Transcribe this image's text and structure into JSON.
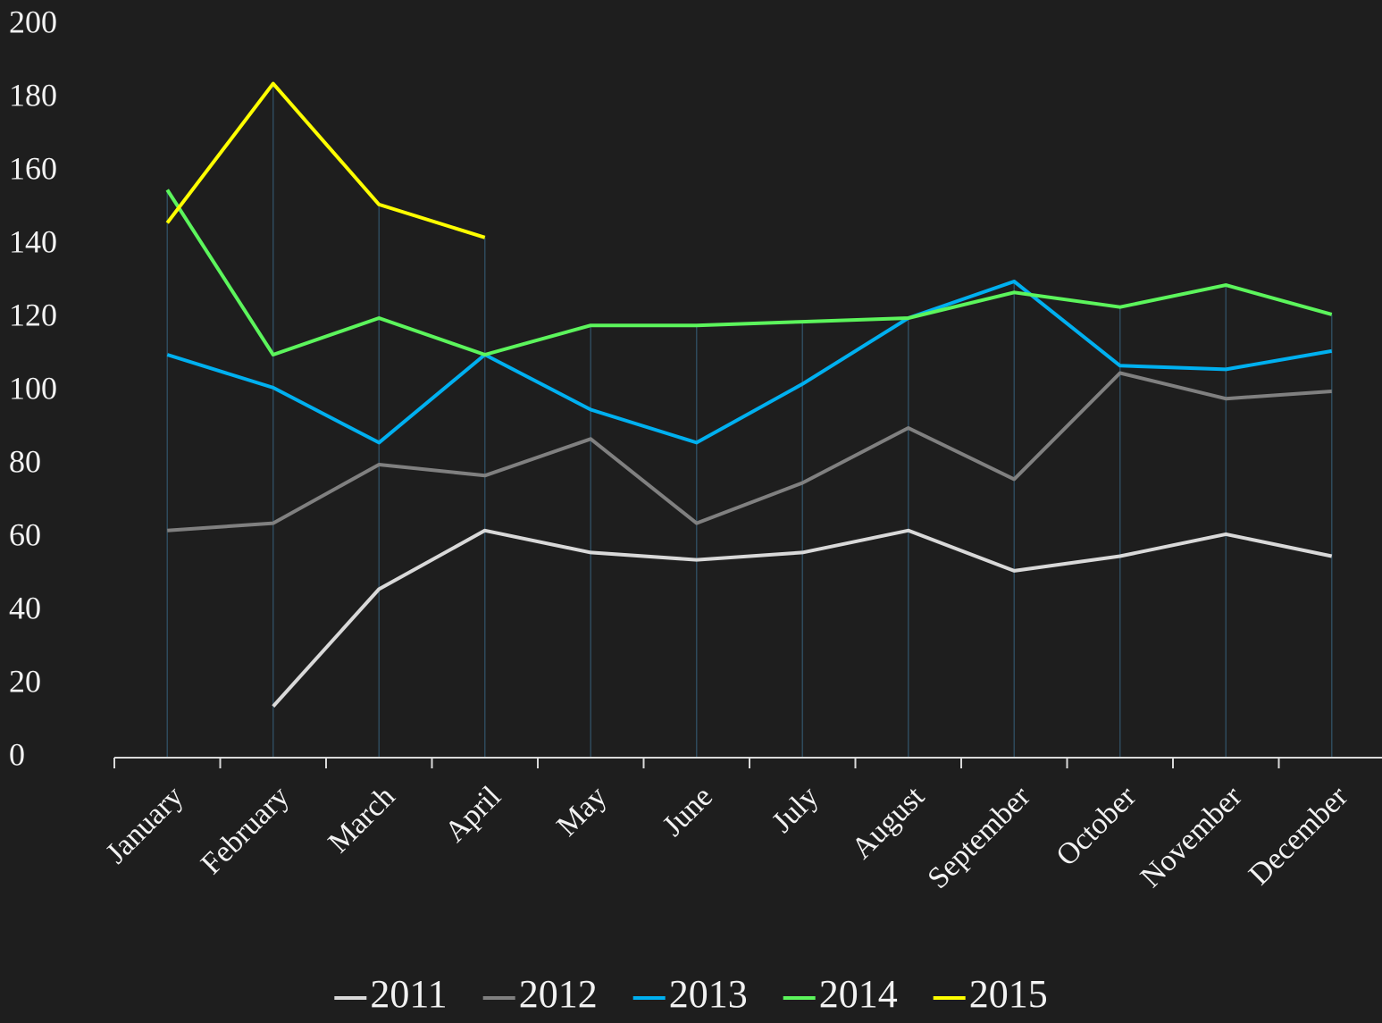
{
  "chart_data": {
    "type": "line",
    "categories": [
      "January",
      "February",
      "March",
      "April",
      "May",
      "June",
      "July",
      "August",
      "September",
      "October",
      "November",
      "December"
    ],
    "series": [
      {
        "name": "2011",
        "color": "#d9d9d9",
        "values": [
          null,
          14,
          46,
          62,
          56,
          54,
          56,
          62,
          51,
          55,
          61,
          55
        ]
      },
      {
        "name": "2012",
        "color": "#808080",
        "values": [
          62,
          64,
          80,
          77,
          87,
          64,
          75,
          90,
          76,
          105,
          98,
          100
        ]
      },
      {
        "name": "2013",
        "color": "#00b0f0",
        "values": [
          110,
          101,
          86,
          110,
          95,
          86,
          102,
          120,
          130,
          107,
          106,
          111
        ]
      },
      {
        "name": "2014",
        "color": "#5cf55c",
        "values": [
          155,
          110,
          120,
          110,
          118,
          118,
          119,
          120,
          127,
          123,
          129,
          121
        ]
      },
      {
        "name": "2015",
        "color": "#ffff00",
        "values": [
          146,
          184,
          151,
          142,
          null,
          null,
          null,
          null,
          null,
          null,
          null,
          null
        ]
      }
    ],
    "ylim": [
      0,
      200
    ],
    "yticks": [
      0,
      20,
      40,
      60,
      80,
      100,
      120,
      140,
      160,
      180,
      200
    ],
    "drop_lines": true,
    "legend": "bottom"
  }
}
